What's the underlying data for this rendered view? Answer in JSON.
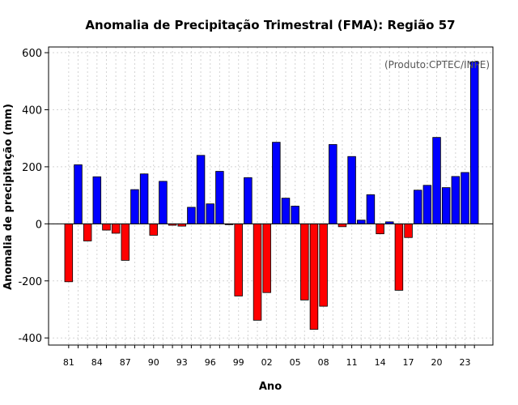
{
  "chart_data": {
    "type": "bar",
    "title": "Anomalia de Precipitação Trimestral (FMA): Região 57",
    "xlabel": "Ano",
    "ylabel": "Anomalia de precipitação (mm)",
    "annotation": "(Produto:CPTEC/INPE)",
    "ylim": [
      -425,
      620
    ],
    "yticks": [
      -400,
      -200,
      0,
      200,
      400,
      600
    ],
    "xtick_labels": [
      "81",
      "84",
      "87",
      "90",
      "93",
      "96",
      "99",
      "02",
      "05",
      "08",
      "11",
      "14",
      "17",
      "20",
      "23"
    ],
    "years": [
      1981,
      1982,
      1983,
      1984,
      1985,
      1986,
      1987,
      1988,
      1989,
      1990,
      1991,
      1992,
      1993,
      1994,
      1995,
      1996,
      1997,
      1998,
      1999,
      2000,
      2001,
      2002,
      2003,
      2004,
      2005,
      2006,
      2007,
      2008,
      2009,
      2010,
      2011,
      2012,
      2013,
      2014,
      2015,
      2016,
      2017,
      2018,
      2019,
      2020,
      2021,
      2022,
      2023,
      2024
    ],
    "values": [
      -203,
      207,
      -60,
      165,
      -22,
      -33,
      -128,
      120,
      175,
      -40,
      149,
      -5,
      -8,
      58,
      240,
      70,
      184,
      -3,
      -253,
      162,
      -338,
      -241,
      286,
      90,
      62,
      -267,
      -370,
      -289,
      278,
      -10,
      236,
      13,
      102,
      -35,
      7,
      -233,
      -48,
      118,
      135,
      303,
      127,
      166,
      180,
      568
    ],
    "grid": true,
    "colors": {
      "positive": "#0000ff",
      "negative": "#ff0000",
      "zero_line": "#000000",
      "grid": "#d3d3d3"
    }
  }
}
